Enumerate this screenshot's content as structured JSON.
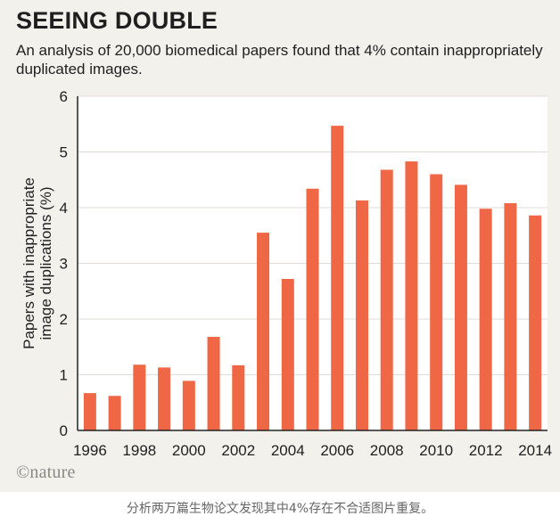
{
  "header": {
    "title": "SEEING DOUBLE",
    "subtitle": "An analysis of 20,000 biomedical papers found that 4% contain inappropriately duplicated images."
  },
  "credit": "©nature",
  "caption": "分析两万篇生物论文发现其中4%存在不合适图片重复。",
  "colors": {
    "bar": "#ef6744",
    "grid": "#e0ddd8",
    "axis": "#222222"
  },
  "chart_data": {
    "type": "bar",
    "title": "SEEING DOUBLE",
    "subtitle": "An analysis of 20,000 biomedical papers found that 4% contain inappropriately duplicated images.",
    "ylabel_lines": [
      "Papers with inappropriate",
      "image duplications (%)"
    ],
    "xlabel": "",
    "ylim": [
      0,
      6
    ],
    "yticks": [
      0,
      1,
      2,
      3,
      4,
      5,
      6
    ],
    "xtick_labels": [
      "1996",
      "1998",
      "2000",
      "2002",
      "2004",
      "2006",
      "2008",
      "2010",
      "2012",
      "2014"
    ],
    "categories": [
      "1996",
      "1997",
      "1998",
      "1999",
      "2000",
      "2001",
      "2002",
      "2003",
      "2004",
      "2005",
      "2006",
      "2007",
      "2008",
      "2009",
      "2010",
      "2011",
      "2012",
      "2013",
      "2014"
    ],
    "values": [
      0.67,
      0.62,
      1.18,
      1.13,
      0.89,
      1.68,
      1.17,
      3.55,
      2.72,
      4.34,
      5.47,
      4.13,
      4.68,
      4.83,
      4.6,
      4.41,
      3.98,
      4.08,
      3.86
    ],
    "grid": true,
    "legend": "none"
  }
}
